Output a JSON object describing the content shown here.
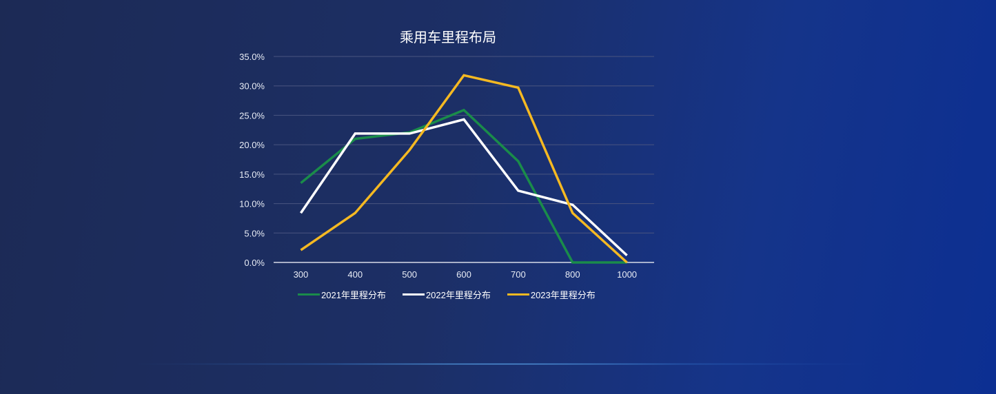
{
  "chart_data": {
    "type": "line",
    "title": "乘用车里程布局",
    "categories": [
      "300",
      "400",
      "500",
      "600",
      "700",
      "800",
      "1000"
    ],
    "series": [
      {
        "name": "2021年里程分布",
        "color": "#1a8c4a",
        "values": [
          13.5,
          21.0,
          22.1,
          25.9,
          17.2,
          0.0,
          0.0
        ]
      },
      {
        "name": "2022年里程分布",
        "color": "#ffffff",
        "values": [
          8.4,
          21.9,
          21.9,
          24.3,
          12.2,
          9.8,
          1.2
        ]
      },
      {
        "name": "2023年里程分布",
        "color": "#f5b922",
        "values": [
          2.1,
          8.4,
          19.1,
          31.8,
          29.7,
          8.4,
          0.0
        ]
      }
    ],
    "ylim": [
      0,
      35
    ],
    "yticks": [
      "0.0%",
      "5.0%",
      "10.0%",
      "15.0%",
      "20.0%",
      "25.0%",
      "30.0%",
      "35.0%"
    ],
    "grid": true,
    "legend": "bottom",
    "xlabel": "",
    "ylabel": ""
  }
}
